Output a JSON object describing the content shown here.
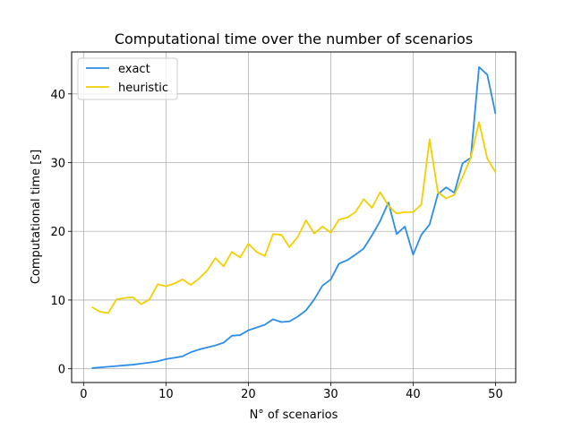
{
  "chart_data": {
    "type": "line",
    "title": "Computational time over the number of scenarios",
    "xlabel": "N° of scenarios",
    "ylabel": "Computational time [s]",
    "xlim": [
      -1.45,
      52.45
    ],
    "ylim": [
      -2.0,
      46.1
    ],
    "xticks": [
      0,
      10,
      20,
      30,
      40,
      50
    ],
    "yticks": [
      0,
      10,
      20,
      30,
      40
    ],
    "grid": true,
    "legend_position": "top-left",
    "x": [
      1,
      2,
      3,
      4,
      5,
      6,
      7,
      8,
      9,
      10,
      11,
      12,
      13,
      14,
      15,
      16,
      17,
      18,
      19,
      20,
      21,
      22,
      23,
      24,
      25,
      26,
      27,
      28,
      29,
      30,
      31,
      32,
      33,
      34,
      35,
      36,
      37,
      38,
      39,
      40,
      41,
      42,
      43,
      44,
      45,
      46,
      47,
      48,
      49,
      50
    ],
    "series": [
      {
        "name": "exact",
        "color": "#2b8de8",
        "values": [
          0.1,
          0.2,
          0.3,
          0.4,
          0.5,
          0.6,
          0.75,
          0.9,
          1.1,
          1.4,
          1.6,
          1.8,
          2.4,
          2.8,
          3.1,
          3.4,
          3.8,
          4.8,
          4.9,
          5.6,
          6.0,
          6.4,
          7.2,
          6.8,
          6.9,
          7.6,
          8.5,
          10.1,
          12.1,
          13.0,
          15.3,
          15.8,
          16.6,
          17.5,
          19.4,
          21.5,
          24.2,
          19.6,
          20.7,
          16.6,
          19.5,
          21.0,
          25.4,
          26.4,
          25.6,
          29.9,
          30.7,
          43.9,
          42.8,
          37.1
        ]
      },
      {
        "name": "heuristic",
        "color": "#f2d000",
        "values": [
          9.0,
          8.3,
          8.1,
          10.1,
          10.3,
          10.4,
          9.4,
          10.1,
          12.3,
          12.0,
          12.4,
          13.0,
          12.2,
          13.1,
          14.3,
          16.1,
          14.9,
          17.0,
          16.2,
          18.2,
          17.0,
          16.4,
          19.6,
          19.5,
          17.7,
          19.2,
          21.6,
          19.7,
          20.7,
          19.8,
          21.7,
          22.0,
          22.8,
          24.7,
          23.4,
          25.7,
          23.7,
          22.6,
          22.8,
          22.8,
          23.9,
          33.4,
          25.7,
          24.8,
          25.3,
          27.9,
          30.7,
          35.9,
          30.6,
          28.6
        ]
      }
    ]
  }
}
